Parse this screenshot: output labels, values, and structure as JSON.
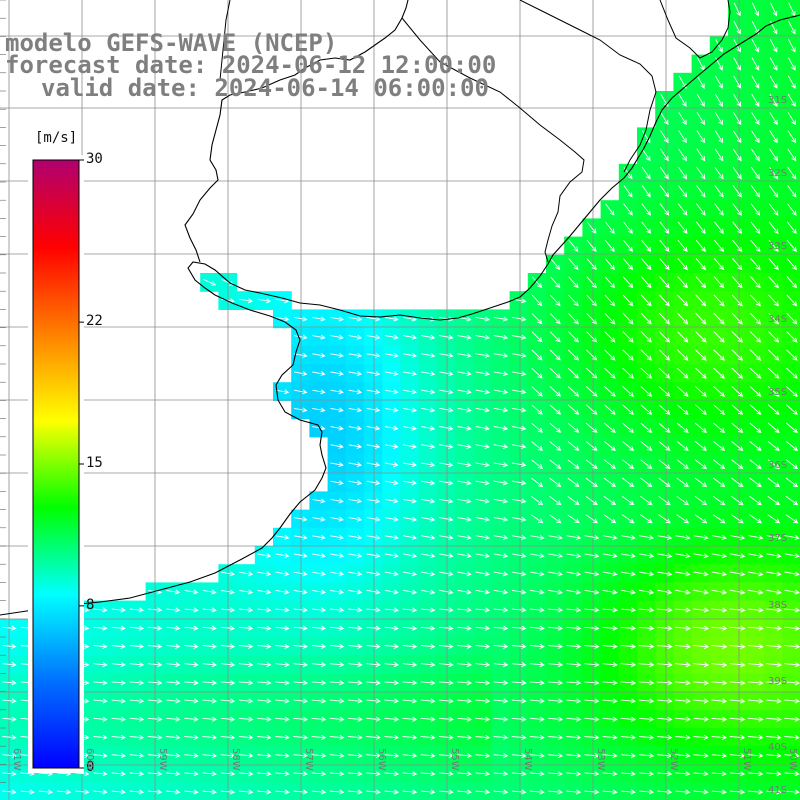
{
  "header": {
    "title": "modelo GEFS-WAVE (NCEP)",
    "forecast_line": "forecast date: 2024-06-12 12:00:00",
    "valid_line": "valid date: 2024-06-14 06:00:00"
  },
  "colorbar": {
    "unit_label": "[m/s]",
    "ticks": [
      {
        "label": "30",
        "value": 30
      },
      {
        "label": "22",
        "value": 22
      },
      {
        "label": "15",
        "value": 15
      },
      {
        "label": "8",
        "value": 8
      },
      {
        "label": "0",
        "value": 0
      }
    ],
    "stops": [
      "#0000ff",
      "#0070ff",
      "#00ffff",
      "#00ff00",
      "#ffff00",
      "#ff8000",
      "#ff0000",
      "#b00070"
    ]
  },
  "axes": {
    "longitude_labels": [
      "61W",
      "60W",
      "59W",
      "58W",
      "57W",
      "56W",
      "55W",
      "54W",
      "53W",
      "52W",
      "51W",
      "50W"
    ],
    "latitude_labels": [
      "31S",
      "32S",
      "33S",
      "34S",
      "35S",
      "36S",
      "37S",
      "38S",
      "39S",
      "40S",
      "41S"
    ]
  },
  "field": {
    "variable": "wind speed and direction",
    "colors": {
      "land": "#ffffff",
      "coast": "#000000",
      "grid": "#909090",
      "arrow": "#ffffff"
    }
  }
}
